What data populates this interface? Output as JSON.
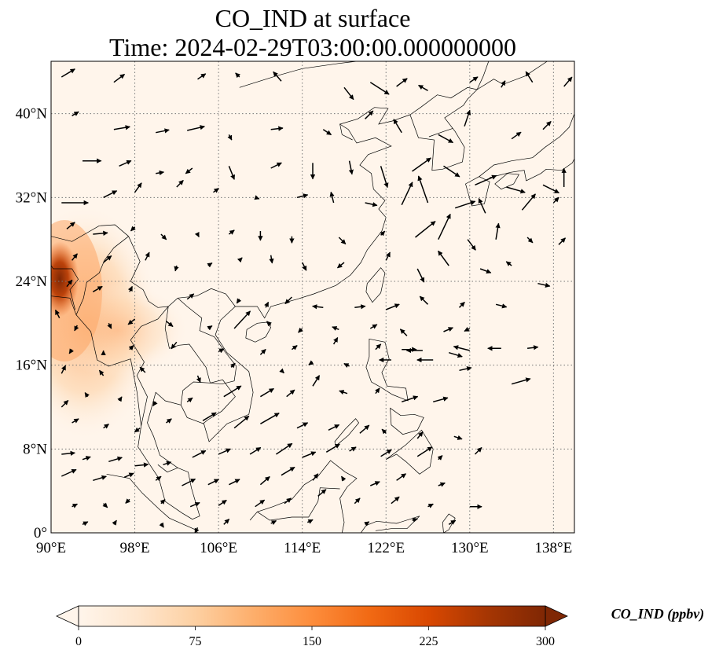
{
  "title_line1": "CO_IND at surface",
  "title_line2": "Time: 2024-02-29T03:00:00.000000000",
  "map": {
    "lon_range": [
      90,
      140
    ],
    "lat_range": [
      0,
      45
    ],
    "grid": "dotted",
    "lon_ticks": [
      {
        "value": 90,
        "label": "90°E"
      },
      {
        "value": 98,
        "label": "98°E"
      },
      {
        "value": 106,
        "label": "106°E"
      },
      {
        "value": 114,
        "label": "114°E"
      },
      {
        "value": 122,
        "label": "122°E"
      },
      {
        "value": 130,
        "label": "130°E"
      },
      {
        "value": 138,
        "label": "138°E"
      }
    ],
    "lat_ticks": [
      {
        "value": 0,
        "label": "0°"
      },
      {
        "value": 8,
        "label": "8°N"
      },
      {
        "value": 16,
        "label": "16°N"
      },
      {
        "value": 24,
        "label": "24°N"
      },
      {
        "value": 32,
        "label": "32°N"
      },
      {
        "value": 40,
        "label": "40°N"
      }
    ]
  },
  "colorbar": {
    "label": "CO_IND (ppbv)",
    "min": 0,
    "max": 300,
    "extend": "both",
    "colors": [
      "#fff5eb",
      "#fee6ce",
      "#fdd0a2",
      "#fdae6b",
      "#fd8d3c",
      "#f16913",
      "#d94801",
      "#a63603",
      "#7f2704"
    ],
    "ticks": [
      {
        "value": 0,
        "label": "0"
      },
      {
        "value": 75,
        "label": "75"
      },
      {
        "value": 150,
        "label": "150"
      },
      {
        "value": 225,
        "label": "225"
      },
      {
        "value": 300,
        "label": "300"
      }
    ]
  }
}
